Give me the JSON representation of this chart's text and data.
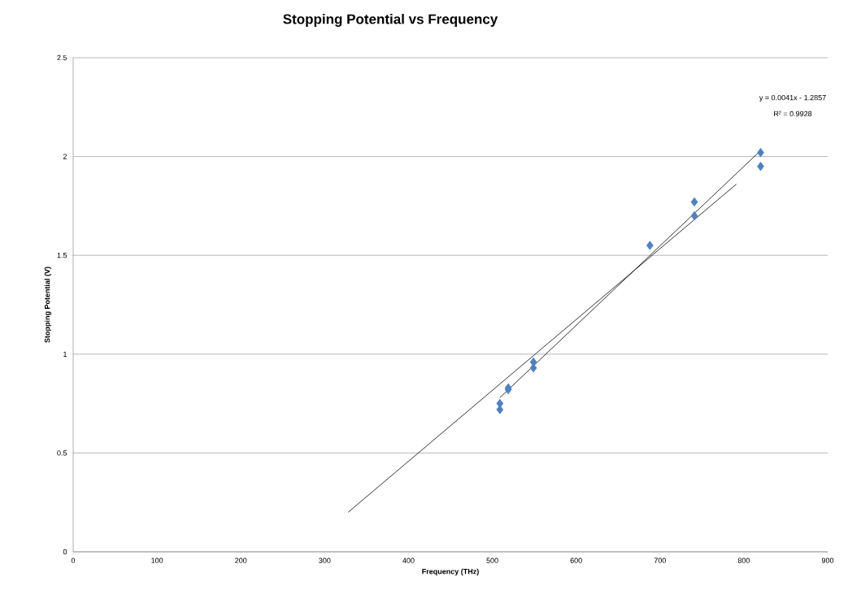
{
  "chart_data": {
    "type": "scatter",
    "title": "Stopping Potential vs Frequency",
    "xlabel": "Frequency (THz)",
    "ylabel": "Stopping Potential (V)",
    "series": [
      {
        "color": "#4f81bd",
        "marker": "diamond",
        "x": [
          509,
          509,
          519,
          519,
          549,
          549,
          688,
          741,
          741,
          820,
          820
        ],
        "values": [
          0.75,
          0.72,
          0.83,
          0.82,
          0.96,
          0.93,
          1.55,
          1.77,
          1.7,
          2.02,
          1.95
        ]
      },
      {
        "type": "line",
        "color": "#000000",
        "x": [
          509,
          820
        ],
        "values": [
          0.78,
          2.03
        ]
      },
      {
        "type": "line",
        "color": "#000000",
        "x": [
          328,
          791
        ],
        "values": [
          0.2,
          1.86
        ]
      }
    ],
    "xlim": [
      0,
      900
    ],
    "xticks": [
      0,
      100,
      200,
      300,
      400,
      500,
      600,
      700,
      800,
      900
    ],
    "ylim": [
      0,
      2.5
    ],
    "yticks": [
      0,
      0.5,
      1,
      1.5,
      2,
      2.5
    ],
    "grid": "y",
    "annotations": [
      "y = 0.0041x - 1.2857",
      "R² = 0.9928"
    ]
  }
}
